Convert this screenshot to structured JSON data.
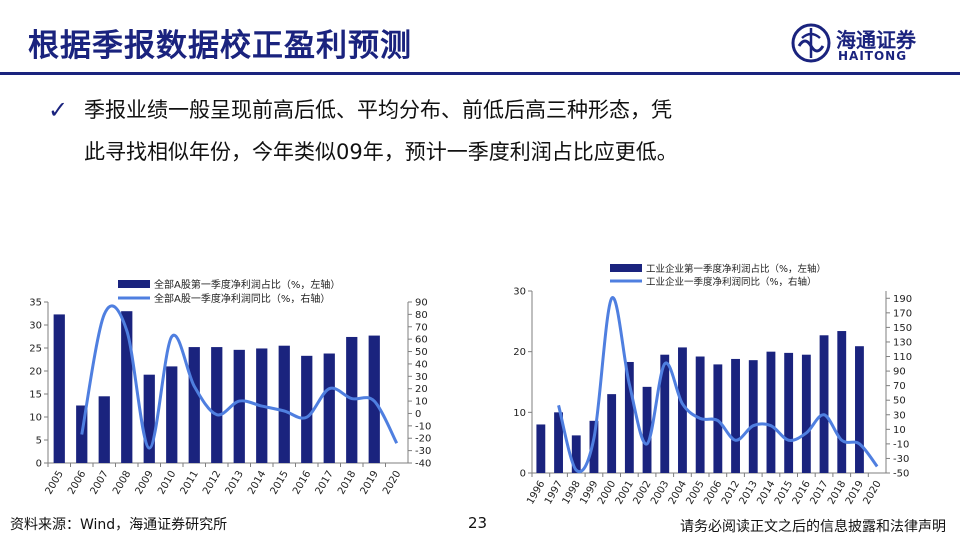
{
  "header": {
    "title": "根据季报数据校正盈利预测",
    "logo_cn": "海通证券",
    "logo_en": "HAITONG",
    "logo_icon": "haitong-logo-icon"
  },
  "bullet": {
    "icon": "check-icon",
    "line1": "季报业绩一般呈现前高后低、平均分布、前低后高三种形态，凭",
    "line2": "此寻找相似年份，今年类似09年，预计一季度利润占比应更低。"
  },
  "colors": {
    "accent": "#1a237e",
    "bar": "#1a237e",
    "line": "#4f7fe0",
    "axis": "#7f7f7f"
  },
  "footer": {
    "source": "资料来源：Wind，海通证券研究所",
    "page": "23",
    "disclaimer": "请务必阅读正文之后的信息披露和法律声明"
  },
  "chart_data": [
    {
      "type": "bar",
      "id": "left",
      "categories": [
        "2005",
        "2006",
        "2007",
        "2008",
        "2009",
        "2010",
        "2011",
        "2012",
        "2013",
        "2014",
        "2015",
        "2016",
        "2017",
        "2018",
        "2019",
        "2020"
      ],
      "series": [
        {
          "name": "全部A股第一季度净利润占比（%，左轴）",
          "kind": "bar",
          "axis": "left",
          "values": [
            32.3,
            12.5,
            14.5,
            33.0,
            19.2,
            21.0,
            25.2,
            25.2,
            24.6,
            24.9,
            25.5,
            23.3,
            23.8,
            27.4,
            27.7,
            null
          ]
        },
        {
          "name": "全部A股一季度净利润同比（%，右轴）",
          "kind": "line",
          "axis": "right",
          "values": [
            null,
            -17,
            80,
            67,
            -28,
            62,
            22,
            -1,
            10,
            6,
            2,
            -3,
            20,
            12,
            10,
            -24
          ]
        }
      ],
      "left_axis": {
        "min": 0,
        "max": 35,
        "ticks": [
          0,
          5,
          10,
          15,
          20,
          25,
          30,
          35
        ]
      },
      "right_axis": {
        "min": -40,
        "max": 90,
        "ticks": [
          -40,
          -30,
          -20,
          -10,
          0,
          10,
          20,
          30,
          40,
          50,
          60,
          70,
          80,
          90
        ]
      },
      "legend_position": "top-center"
    },
    {
      "type": "bar",
      "id": "right",
      "categories": [
        "1996",
        "1997",
        "1998",
        "1999",
        "2000",
        "2001",
        "2002",
        "2003",
        "2004",
        "2005",
        "2006",
        "2012",
        "2013",
        "2014",
        "2015",
        "2016",
        "2017",
        "2018",
        "2019",
        "2020"
      ],
      "series": [
        {
          "name": "工业企业第一季度净利润占比（%，左轴）",
          "kind": "bar",
          "axis": "left",
          "values": [
            8.0,
            10.0,
            6.2,
            8.6,
            13.0,
            18.3,
            14.2,
            19.5,
            20.7,
            19.2,
            17.9,
            18.8,
            18.6,
            20.0,
            19.8,
            19.5,
            22.7,
            23.4,
            20.9,
            null
          ]
        },
        {
          "name": "工业企业一季度净利润同比（%，右轴）",
          "kind": "line",
          "axis": "right",
          "values": [
            null,
            43,
            -46,
            -2,
            190,
            72,
            -10,
            100,
            45,
            25,
            22,
            -5,
            15,
            15,
            -5,
            5,
            30,
            -5,
            -10,
            -41
          ]
        }
      ],
      "left_axis": {
        "min": 0,
        "max": 30,
        "ticks": [
          0,
          10,
          20,
          30
        ]
      },
      "right_axis": {
        "min": -50,
        "max": 200,
        "ticks": [
          -50,
          -30,
          -10,
          10,
          30,
          50,
          70,
          90,
          110,
          130,
          150,
          170,
          190
        ]
      },
      "legend_position": "top-right"
    }
  ]
}
